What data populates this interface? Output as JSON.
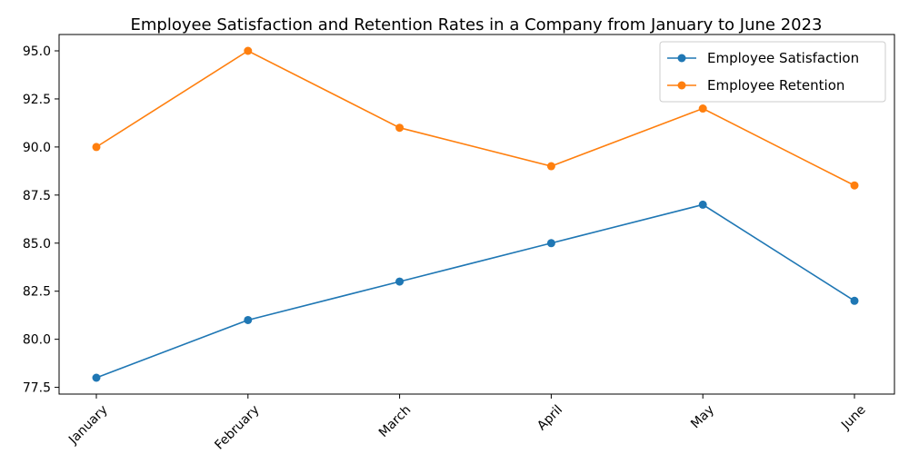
{
  "chart_data": {
    "type": "line",
    "title": "Employee Satisfaction and Retention Rates in a Company from January to June 2023",
    "xlabel": "",
    "ylabel": "",
    "categories": [
      "January",
      "February",
      "March",
      "April",
      "May",
      "June"
    ],
    "series": [
      {
        "name": "Employee Satisfaction",
        "color": "#1f77b4",
        "values": [
          78,
          81,
          83,
          85,
          87,
          82
        ]
      },
      {
        "name": "Employee Retention",
        "color": "#ff7f0e",
        "values": [
          90,
          95,
          91,
          89,
          92,
          88
        ]
      }
    ],
    "ylim": [
      77.15,
      95.85
    ],
    "yticks": [
      77.5,
      80.0,
      82.5,
      85.0,
      87.5,
      90.0,
      92.5,
      95.0
    ],
    "ytick_labels": [
      "77.5",
      "80.0",
      "82.5",
      "85.0",
      "87.5",
      "90.0",
      "92.5",
      "95.0"
    ],
    "xtick_rotation_deg": 45,
    "grid": false,
    "legend_position": "top-right",
    "marker": "circle"
  }
}
